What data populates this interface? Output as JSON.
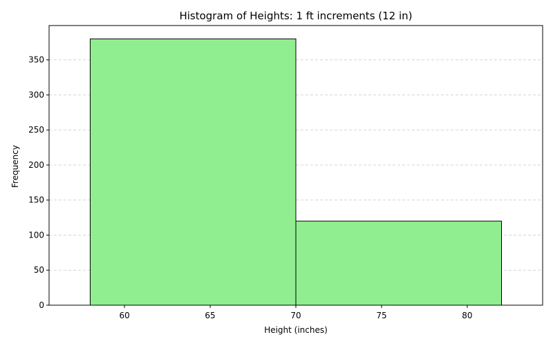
{
  "chart_data": {
    "type": "bar",
    "title": "Histogram of Heights: 1 ft increments (12 in)",
    "xlabel": "Height (inches)",
    "ylabel": "Frequency",
    "bins": [
      {
        "start": 58,
        "end": 70,
        "value": 380
      },
      {
        "start": 70,
        "end": 82,
        "value": 120
      }
    ],
    "xlim": [
      55.6,
      84.4
    ],
    "ylim": [
      0,
      399
    ],
    "xticks": [
      60,
      65,
      70,
      75,
      80
    ],
    "yticks": [
      0,
      50,
      100,
      150,
      200,
      250,
      300,
      350
    ],
    "grid": {
      "axis": "y",
      "style": "dashed",
      "color": "#c8c8c8"
    },
    "bar_color": "#90ee90",
    "edge_color": "#000000"
  }
}
